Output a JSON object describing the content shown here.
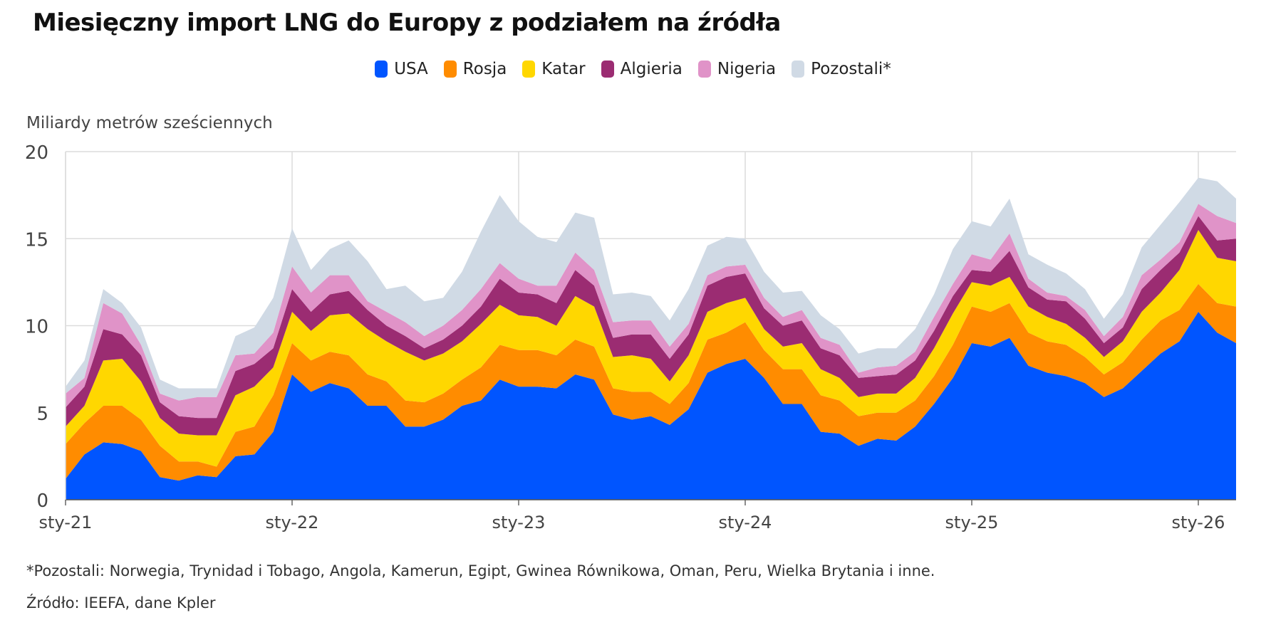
{
  "title": "Miesięczny import LNG do Europy z podziałem na źródła",
  "footnote": "*Pozostali: Norwegia, Trynidad i Tobago, Angola, Kamerun, Egipt, Gwinea Równikowa, Oman, Peru, Wielka Brytania i inne.",
  "source": "Źródło: IEEFA, dane Kpler",
  "chart_data": {
    "type": "area",
    "stacked": true,
    "title": "Miesięczny import LNG do Europy z podziałem na źródła",
    "ylabel": "Miliardy metrów sześciennych",
    "ylim": [
      0,
      20
    ],
    "yticks": [
      0,
      5,
      10,
      15,
      20
    ],
    "x_tick_labels": [
      "sty-21",
      "sty-22",
      "sty-23",
      "sty-24",
      "sty-25",
      "sty-26"
    ],
    "x_tick_positions": [
      0,
      12,
      24,
      36,
      48,
      60
    ],
    "legend_position": "top-center",
    "grid": true,
    "x": [
      "sty-21",
      "lut-21",
      "mar-21",
      "kwi-21",
      "maj-21",
      "cze-21",
      "lip-21",
      "sie-21",
      "wrz-21",
      "paź-21",
      "lis-21",
      "gru-21",
      "sty-22",
      "lut-22",
      "mar-22",
      "kwi-22",
      "maj-22",
      "cze-22",
      "lip-22",
      "sie-22",
      "wrz-22",
      "paź-22",
      "lis-22",
      "gru-22",
      "sty-23",
      "lut-23",
      "mar-23",
      "kwi-23",
      "maj-23",
      "cze-23",
      "lip-23",
      "sie-23",
      "wrz-23",
      "paź-23",
      "lis-23",
      "gru-23",
      "sty-24",
      "lut-24",
      "mar-24",
      "kwi-24",
      "maj-24",
      "cze-24",
      "lip-24",
      "sie-24",
      "wrz-24",
      "paź-24",
      "lis-24",
      "gru-24",
      "sty-25",
      "lut-25",
      "mar-25",
      "kwi-25",
      "maj-25",
      "cze-25",
      "lip-25",
      "sie-25",
      "wrz-25",
      "paź-25",
      "lis-25",
      "gru-25",
      "sty-26",
      "lut-26",
      "mar-26"
    ],
    "series": [
      {
        "name": "USA",
        "color": "#0055ff",
        "values": [
          1.2,
          2.6,
          3.3,
          3.2,
          2.8,
          1.3,
          1.1,
          1.4,
          1.3,
          2.5,
          2.6,
          3.9,
          7.2,
          6.2,
          6.7,
          6.4,
          5.4,
          5.4,
          4.2,
          4.2,
          4.6,
          5.4,
          5.7,
          6.9,
          6.5,
          6.5,
          6.4,
          7.2,
          6.9,
          4.9,
          4.6,
          4.8,
          4.3,
          5.2,
          7.3,
          7.8,
          8.1,
          7.0,
          5.5,
          5.5,
          3.9,
          3.8,
          3.1,
          3.5,
          3.4,
          4.2,
          5.5,
          7.0,
          9.0,
          8.8,
          9.3,
          7.7,
          7.3,
          7.1,
          6.7,
          5.9,
          6.4,
          7.4,
          8.4,
          9.1,
          10.8,
          9.6,
          9.0
        ]
      },
      {
        "name": "Rosja",
        "color": "#ff8c00",
        "values": [
          2.0,
          1.8,
          2.1,
          2.2,
          1.8,
          1.8,
          1.1,
          0.8,
          0.6,
          1.4,
          1.6,
          2.1,
          1.8,
          1.8,
          1.8,
          1.9,
          1.8,
          1.4,
          1.5,
          1.4,
          1.5,
          1.5,
          1.9,
          2.0,
          2.1,
          2.1,
          1.9,
          2.0,
          1.9,
          1.5,
          1.6,
          1.4,
          1.2,
          1.5,
          1.9,
          1.8,
          2.1,
          1.6,
          2.0,
          2.0,
          2.1,
          1.9,
          1.7,
          1.5,
          1.6,
          1.5,
          1.6,
          1.9,
          2.1,
          2.0,
          2.0,
          1.9,
          1.8,
          1.8,
          1.5,
          1.3,
          1.5,
          1.8,
          1.9,
          1.8,
          1.6,
          1.7,
          2.1
        ]
      },
      {
        "name": "Katar",
        "color": "#ffd700",
        "values": [
          1.0,
          1.0,
          2.6,
          2.7,
          2.2,
          1.6,
          1.6,
          1.5,
          1.8,
          2.1,
          2.3,
          1.6,
          1.8,
          1.7,
          2.1,
          2.4,
          2.6,
          2.3,
          2.8,
          2.4,
          2.3,
          2.2,
          2.5,
          2.3,
          2.0,
          1.9,
          1.7,
          2.5,
          2.3,
          1.8,
          2.1,
          1.9,
          1.3,
          1.6,
          1.6,
          1.7,
          1.4,
          1.2,
          1.3,
          1.5,
          1.5,
          1.3,
          1.1,
          1.1,
          1.1,
          1.3,
          1.6,
          1.8,
          1.4,
          1.5,
          1.5,
          1.5,
          1.4,
          1.2,
          1.1,
          1.0,
          1.2,
          1.6,
          1.6,
          2.3,
          3.1,
          2.6,
          2.6
        ]
      },
      {
        "name": "Algieria",
        "color": "#9b2c72",
        "values": [
          1.1,
          1.1,
          1.8,
          1.4,
          1.5,
          0.9,
          1.0,
          1.0,
          1.0,
          1.4,
          1.3,
          1.1,
          1.3,
          1.1,
          1.2,
          1.3,
          1.1,
          0.9,
          0.9,
          0.7,
          0.8,
          0.9,
          1.0,
          1.5,
          1.3,
          1.3,
          1.3,
          1.5,
          1.2,
          1.1,
          1.2,
          1.4,
          1.3,
          1.2,
          1.5,
          1.5,
          1.4,
          1.2,
          1.2,
          1.3,
          1.2,
          1.3,
          1.1,
          1.0,
          1.1,
          1.0,
          1.0,
          1.0,
          0.7,
          0.8,
          1.5,
          1.1,
          1.0,
          1.3,
          1.1,
          0.8,
          0.8,
          1.3,
          1.3,
          1.0,
          0.8,
          1.0,
          1.3
        ]
      },
      {
        "name": "Nigeria",
        "color": "#e093c8",
        "values": [
          0.8,
          0.5,
          1.5,
          1.2,
          0.6,
          0.5,
          0.9,
          1.2,
          1.2,
          0.9,
          0.6,
          0.9,
          1.3,
          1.1,
          1.1,
          0.9,
          0.5,
          0.8,
          0.8,
          0.7,
          0.8,
          0.9,
          1.0,
          0.9,
          0.8,
          0.5,
          1.0,
          1.0,
          0.9,
          0.9,
          0.8,
          0.8,
          0.7,
          0.6,
          0.6,
          0.6,
          0.5,
          0.6,
          0.5,
          0.6,
          0.6,
          0.6,
          0.3,
          0.5,
          0.5,
          0.5,
          0.8,
          0.7,
          0.9,
          0.7,
          1.0,
          0.5,
          0.4,
          0.3,
          0.5,
          0.4,
          0.6,
          0.8,
          0.6,
          0.6,
          0.7,
          1.4,
          0.9
        ]
      },
      {
        "name": "Pozostali*",
        "color": "#d0dae5",
        "values": [
          0.4,
          1.0,
          0.8,
          0.6,
          1.0,
          0.8,
          0.7,
          0.5,
          0.5,
          1.1,
          1.5,
          2.0,
          2.2,
          1.3,
          1.5,
          2.0,
          2.3,
          1.3,
          2.1,
          2.0,
          1.6,
          2.2,
          3.3,
          3.9,
          3.3,
          2.8,
          2.5,
          2.3,
          3.0,
          1.6,
          1.6,
          1.4,
          1.5,
          2.0,
          1.7,
          1.7,
          1.5,
          1.5,
          1.4,
          1.1,
          1.3,
          0.9,
          1.1,
          1.1,
          1.0,
          1.3,
          1.3,
          2.0,
          1.9,
          1.9,
          2.0,
          1.4,
          1.6,
          1.3,
          1.2,
          1.0,
          1.3,
          1.6,
          2.0,
          2.3,
          1.5,
          2.0,
          1.4
        ]
      }
    ]
  }
}
